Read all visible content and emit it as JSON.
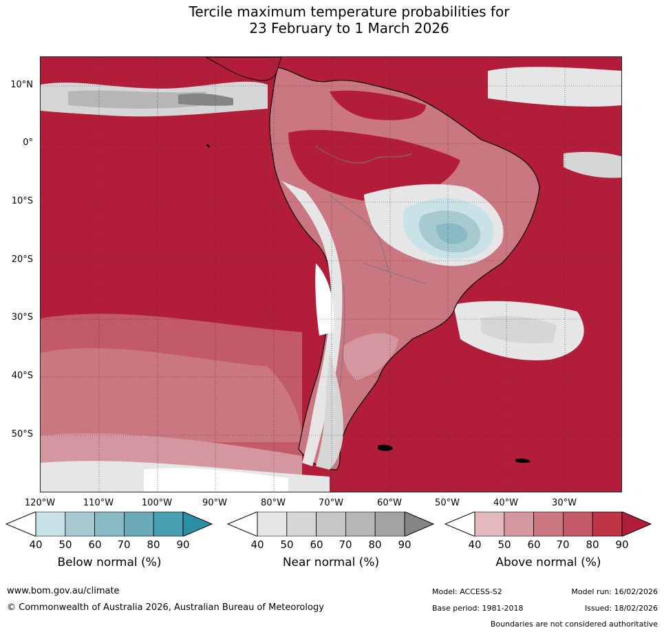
{
  "title": {
    "line1": "Tercile maximum temperature probabilities for",
    "line2": "23 February to 1 March 2026"
  },
  "map": {
    "lat_labels": [
      "10°N",
      "0°",
      "10°S",
      "20°S",
      "30°S",
      "40°S",
      "50°S"
    ],
    "lon_labels": [
      "120°W",
      "110°W",
      "100°W",
      "90°W",
      "80°W",
      "70°W",
      "60°W",
      "50°W",
      "40°W",
      "30°W"
    ]
  },
  "legend": {
    "below": {
      "label": "Below normal (%)",
      "ticks": [
        "40",
        "50",
        "60",
        "70",
        "80",
        "90"
      ],
      "colors": [
        "#c9e2e8",
        "#a7cad1",
        "#89b9c3",
        "#6aaab7",
        "#48a0b1",
        "#2a8fa3"
      ]
    },
    "near": {
      "label": "Near normal (%)",
      "ticks": [
        "40",
        "50",
        "60",
        "70",
        "80",
        "90"
      ],
      "colors": [
        "#e6e6e6",
        "#d6d6d6",
        "#c6c6c6",
        "#b6b6b6",
        "#a3a3a3",
        "#858585"
      ]
    },
    "above": {
      "label": "Above normal (%)",
      "ticks": [
        "40",
        "50",
        "60",
        "70",
        "80",
        "90"
      ],
      "colors": [
        "#e3b9be",
        "#d5979f",
        "#cb7781",
        "#c25b67",
        "#bd3547",
        "#b21d3a"
      ]
    }
  },
  "footer": {
    "website": "www.bom.gov.au/climate",
    "copyright": "© Commonwealth of Australia 2026, Australian Bureau of Meteorology",
    "model": "Model: ACCESS-S2",
    "model_run": "Model run: 16/02/2026",
    "base_period": "Base period: 1981-2018",
    "issued": "Issued: 18/02/2026",
    "disclaimer": "Boundaries are not considered authoritative"
  }
}
